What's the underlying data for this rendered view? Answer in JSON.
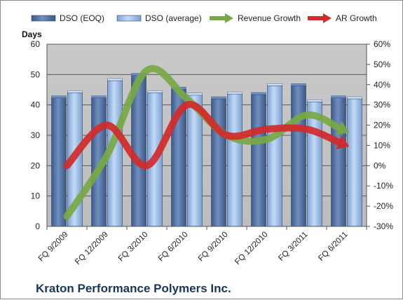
{
  "chart_data": {
    "type": "bar",
    "categories": [
      "FQ 9/2009",
      "FQ 12/2009",
      "FQ 3/2010",
      "FQ 6/2010",
      "FQ 9/2010",
      "FQ 12/2010",
      "FQ 3/2011",
      "FQ 6/2011"
    ],
    "series": [
      {
        "name": "DSO (EOQ)",
        "type": "bar",
        "axis": "left",
        "color": "#4a6a9c",
        "values": [
          42.3,
          42.3,
          49.7,
          45.2,
          42.0,
          43.4,
          46.3,
          42.3
        ]
      },
      {
        "name": "DSO (average)",
        "type": "bar",
        "axis": "left",
        "color": "#8fb3e0",
        "values": [
          44.0,
          48.0,
          44.0,
          43.2,
          43.6,
          46.3,
          41.0,
          42.0
        ]
      },
      {
        "name": "Revenue Growth",
        "type": "line",
        "axis": "right",
        "unit": "%",
        "color": "#77a845",
        "values": [
          -25,
          5,
          47,
          33,
          15,
          13,
          25,
          17
        ]
      },
      {
        "name": "AR Growth",
        "type": "line",
        "axis": "right",
        "unit": "%",
        "color": "#d22a2a",
        "values": [
          0,
          20,
          0,
          30,
          15,
          18,
          18,
          10
        ]
      }
    ],
    "ylabel": "Days",
    "ylim": [
      0,
      60
    ],
    "yticks": [
      0,
      10,
      20,
      30,
      40,
      50,
      60
    ],
    "y2lim": [
      -30,
      60
    ],
    "y2ticks": [
      "-30%",
      "-20%",
      "-10%",
      "0%",
      "10%",
      "20%",
      "30%",
      "40%",
      "50%",
      "60%"
    ],
    "grid": true,
    "legend_position": "top",
    "plot_background": "#c0c0c0",
    "footer": "Kraton Performance Polymers Inc."
  }
}
